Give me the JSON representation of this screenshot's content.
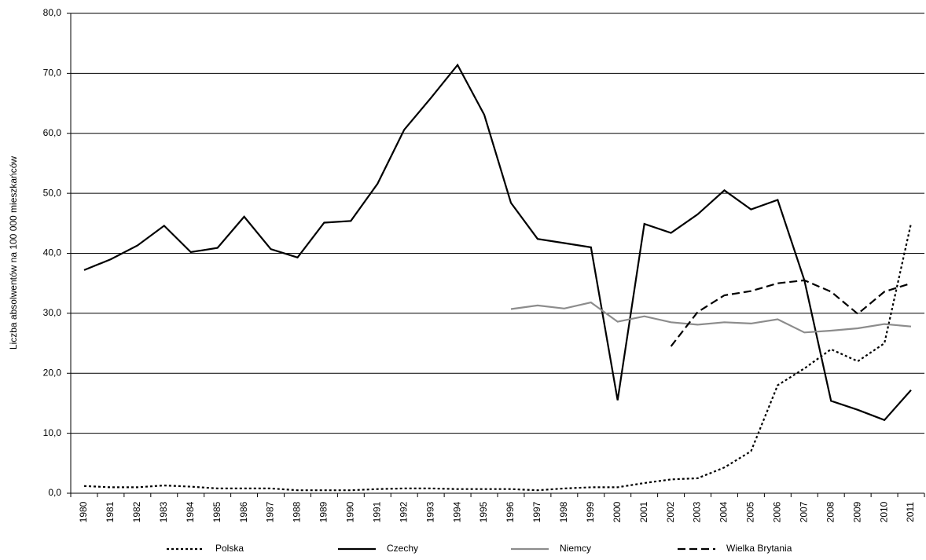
{
  "chart_data": {
    "type": "line",
    "y_label": "Liczba absolwentów na 100 000 mieszkańców",
    "categories": [
      "1980",
      "1981",
      "1982",
      "1983",
      "1984",
      "1985",
      "1986",
      "1987",
      "1988",
      "1989",
      "1990",
      "1991",
      "1992",
      "1993",
      "1994",
      "1995",
      "1996",
      "1997",
      "1998",
      "1999",
      "2000",
      "2001",
      "2002",
      "2003",
      "2004",
      "2005",
      "2006",
      "2007",
      "2008",
      "2009",
      "2010",
      "2011"
    ],
    "series": [
      {
        "name": "Polska",
        "color": "#000000",
        "style": "dotted",
        "values": [
          1.2,
          1.0,
          1.0,
          1.3,
          1.1,
          0.8,
          0.8,
          0.8,
          0.5,
          0.5,
          0.5,
          0.7,
          0.8,
          0.8,
          0.7,
          0.7,
          0.7,
          0.5,
          0.8,
          1.0,
          1.0,
          1.7,
          2.3,
          2.5,
          4.3,
          7.0,
          18.0,
          20.8,
          24.0,
          22.0,
          25.0,
          45.0
        ]
      },
      {
        "name": "Czechy",
        "color": "#000000",
        "style": "solid",
        "values": [
          37.2,
          39.0,
          41.3,
          44.6,
          40.2,
          40.9,
          46.1,
          40.7,
          39.3,
          45.1,
          45.4,
          51.6,
          60.6,
          65.9,
          71.4,
          63.1,
          48.4,
          42.4,
          41.7,
          41.0,
          15.5,
          44.9,
          43.4,
          46.5,
          50.5,
          47.3,
          48.9,
          35.5,
          15.4,
          13.9,
          12.2,
          17.2
        ]
      },
      {
        "name": "Niemcy",
        "color": "#8c8c8c",
        "style": "solid",
        "values": [
          null,
          null,
          null,
          null,
          null,
          null,
          null,
          null,
          null,
          null,
          null,
          null,
          null,
          null,
          null,
          null,
          30.7,
          31.3,
          30.8,
          31.8,
          28.6,
          29.5,
          28.5,
          28.1,
          28.5,
          28.3,
          29.0,
          26.8,
          27.1,
          27.5,
          28.2,
          27.8
        ]
      },
      {
        "name": "Wielka Brytania",
        "color": "#000000",
        "style": "dashed",
        "values": [
          null,
          null,
          null,
          null,
          null,
          null,
          null,
          null,
          null,
          null,
          null,
          null,
          null,
          null,
          null,
          null,
          null,
          null,
          null,
          null,
          null,
          null,
          24.5,
          30.2,
          33.0,
          33.7,
          35.0,
          35.5,
          33.6,
          29.9,
          33.6,
          35.0
        ]
      }
    ],
    "ylim": [
      0,
      80
    ],
    "yticks": [
      {
        "value": 0,
        "label": "0,0"
      },
      {
        "value": 10,
        "label": "10,0"
      },
      {
        "value": 20,
        "label": "20,0"
      },
      {
        "value": 30,
        "label": "30,0"
      },
      {
        "value": 40,
        "label": "40,0"
      },
      {
        "value": 50,
        "label": "50,0"
      },
      {
        "value": 60,
        "label": "60,0"
      },
      {
        "value": 70,
        "label": "70,0"
      },
      {
        "value": 80,
        "label": "80,0"
      }
    ],
    "grid": true,
    "legend": "bottom"
  }
}
